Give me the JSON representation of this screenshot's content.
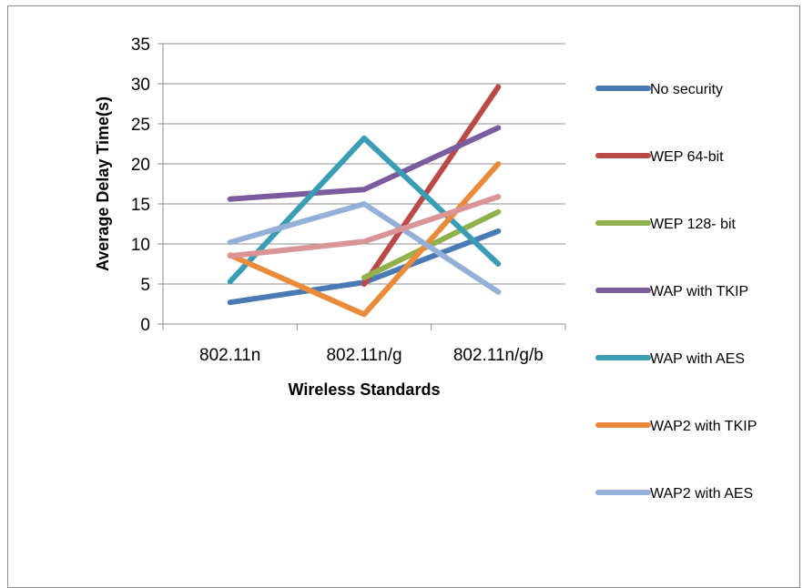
{
  "chart_data": {
    "type": "line",
    "title": "",
    "xlabel": "Wireless Standards",
    "ylabel": "Average Delay Time(s)",
    "categories": [
      "802.11n",
      "802.11n/g",
      "802.11n/g/b"
    ],
    "ylim": [
      0,
      35
    ],
    "yticks": [
      0,
      5,
      10,
      15,
      20,
      25,
      30,
      35
    ],
    "grid": "horizontal",
    "legend_position": "right",
    "series": [
      {
        "name": "No security",
        "color": "#4a7ab5",
        "values": [
          2.7,
          5.2,
          11.6
        ]
      },
      {
        "name": "WEP 64-bit",
        "color": "#b94a48",
        "values": [
          null,
          5.0,
          29.6
        ]
      },
      {
        "name": "WEP 128- bit",
        "color": "#8fb04b",
        "values": [
          null,
          5.8,
          14.0
        ]
      },
      {
        "name": "WAP with TKIP",
        "color": "#7b5b9d",
        "values": [
          15.6,
          16.8,
          24.5
        ]
      },
      {
        "name": "WAP with AES",
        "color": "#3a9db4",
        "values": [
          5.3,
          23.2,
          7.5
        ]
      },
      {
        "name": "WAP2 with TKIP",
        "color": "#e98b3a",
        "values": [
          8.6,
          1.2,
          20.0
        ]
      },
      {
        "name": "WAP2 with AES",
        "color": "#94afd8",
        "values": [
          10.2,
          15.0,
          4.0
        ]
      },
      {
        "name": "",
        "color": "#d99495",
        "values": [
          8.5,
          10.3,
          15.9
        ]
      }
    ]
  }
}
